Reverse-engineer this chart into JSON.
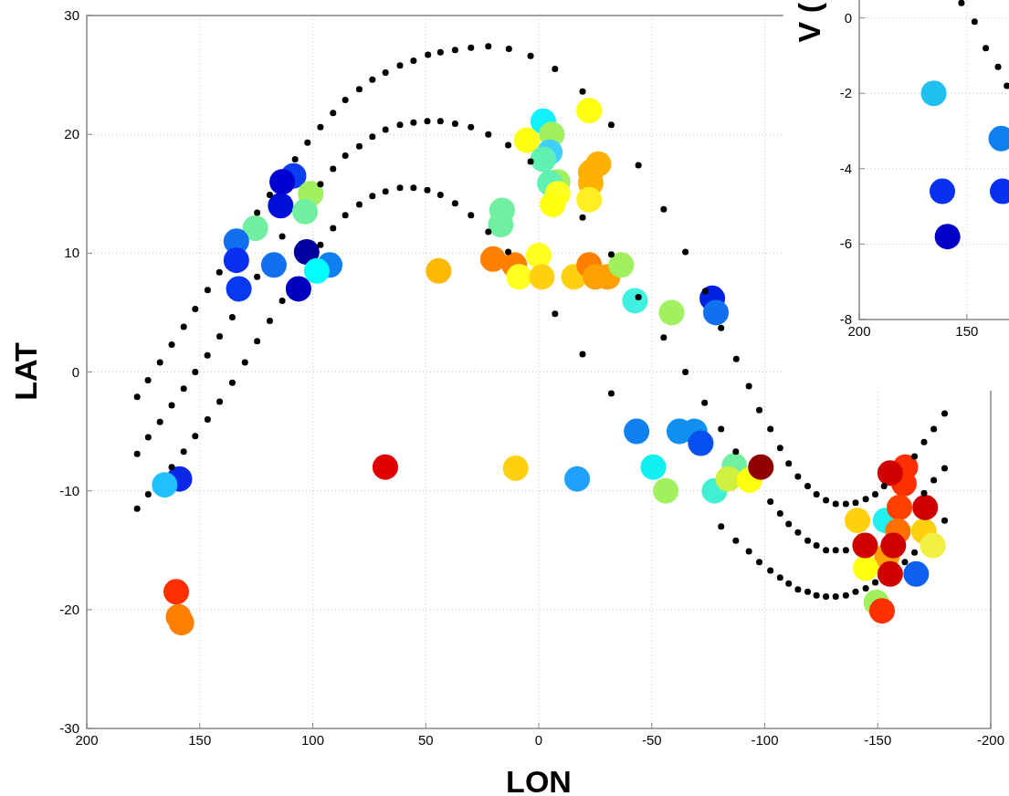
{
  "chart_data": [
    {
      "type": "scatter",
      "xlabel": "LON",
      "ylabel": "LAT",
      "xlim": [
        200,
        -200
      ],
      "ylim": [
        -30,
        30
      ],
      "xticks": [
        200,
        150,
        100,
        50,
        0,
        -50,
        -100,
        -150,
        -200
      ],
      "yticks": [
        -30,
        -20,
        -10,
        0,
        10,
        20,
        30
      ],
      "grid": true,
      "marker": "circle",
      "series": [
        {
          "x": [
            108.5,
            113.5,
            100.9,
            114.2,
            103.4,
            125.4,
            133.8,
            133.8,
            117.2,
            102.7,
            92.5,
            98.2,
            132.7,
            106.3,
            44.3,
            -22.3,
            -2,
            -5.8,
            5.3,
            -4.9,
            -2,
            -26.4,
            -23,
            -23,
            -8.4,
            -4.9,
            -8.4,
            -22.3,
            -6.2,
            16.2,
            16.8,
            20.2,
            10.8,
            0,
            8.7,
            -1.4,
            -15.6,
            -22.3,
            -25.1,
            -30.5,
            -36.5,
            -42.6,
            -58.8,
            -76.8,
            -78.4,
            159,
            165.5,
            67.9,
            160.4,
            159.4,
            158.1,
            10.2,
            -17,
            -43.3,
            -62.2,
            -69,
            -71.7,
            -50.7,
            -56.2,
            -77.8,
            -86.6,
            -83.9,
            -93.3,
            -98.3,
            -154.1,
            -153.5,
            -149.4,
            -141,
            -170.4,
            -174.4,
            -144.7,
            -167,
            -162.2,
            -161.6,
            -159.6,
            -158.9,
            -155.5,
            -171,
            -144.4,
            -156.9,
            -155.5,
            -151.9
          ],
          "values": [
            16.5,
            16,
            15,
            14,
            13.5,
            12.1,
            11,
            9.4,
            9,
            10.1,
            9,
            8.5,
            7,
            7,
            8.5,
            22,
            21.1,
            20,
            19.5,
            18.5,
            17.9,
            17.5,
            16.8,
            15.9,
            16,
            15.9,
            15,
            14.5,
            14.1,
            13.6,
            12.4,
            9.5,
            9,
            9.8,
            8,
            8,
            8,
            9,
            8,
            8,
            9,
            6,
            5,
            6.2,
            5,
            -9,
            -9.5,
            -8,
            -18.5,
            -20.6,
            -21.1,
            -8.1,
            -9,
            -5,
            -5,
            -5,
            -6,
            -8,
            -10,
            -10,
            -7.9,
            -9,
            -9.1,
            -8,
            -15.5,
            -12.5,
            -19.4,
            -12.5,
            -13.4,
            -14.6,
            -16.5,
            -17,
            -8,
            -9.4,
            -11.4,
            -13.4,
            -8.5,
            -11.4,
            -14.6,
            -14.6,
            -17,
            -20.1
          ],
          "colors": [
            "#0a3cf0",
            "#0000d0",
            "#a0f060",
            "#0010d8",
            "#70f0a0",
            "#70f0a0",
            "#1070f0",
            "#0830f0",
            "#1070f0",
            "#0000a0",
            "#1080f0",
            "#00ffff",
            "#0838f0",
            "#0000c0",
            "#ffb800",
            "#ffff10",
            "#10f0ff",
            "#a0f060",
            "#ffff10",
            "#40d0ff",
            "#60f0b0",
            "#ffb000",
            "#ffb000",
            "#ffb000",
            "#a0f060",
            "#60f0b0",
            "#ffff20",
            "#ffee20",
            "#ffff10",
            "#70f0a0",
            "#70f0a0",
            "#ff8000",
            "#ff8000",
            "#ffff20",
            "#ffff20",
            "#ffd010",
            "#ffd010",
            "#ff8000",
            "#ffa000",
            "#ffa000",
            "#a0f060",
            "#40f0e0",
            "#a0f060",
            "#0020e0",
            "#1070f0",
            "#0a28e8",
            "#20c0ff",
            "#e00000",
            "#ff3000",
            "#ff8000",
            "#ff8000",
            "#ffd010",
            "#20a0ff",
            "#1080f0",
            "#1090f0",
            "#1090f0",
            "#0850f0",
            "#10f0f0",
            "#a0f060",
            "#40f0d0",
            "#70f0a0",
            "#d0f040",
            "#ffff10",
            "#900000",
            "#ffa000",
            "#20f0f0",
            "#a0f060",
            "#ffd010",
            "#ffd010",
            "#f0f040",
            "#ffff10",
            "#1060f0",
            "#ff3000",
            "#ff3000",
            "#ff4000",
            "#ff7000",
            "#d00000",
            "#d00000",
            "#d00000",
            "#d00000",
            "#d00000",
            "#ff3000"
          ]
        },
        {
          "color": "#000000",
          "x": [
            177.7,
            172.9,
            167.6,
            162.4,
            157.1,
            152.0,
            146.5,
            141.3,
            124.6,
            119.0,
            107.8,
            102.3,
            96.6,
            91.0,
            85.6,
            79.4,
            73.6,
            67.8,
            61.4,
            55.4,
            49.0,
            43.5,
            37.0,
            30.0,
            22.3,
            13.2,
            3.6,
            -7.2,
            -19.4,
            -32.1,
            -44.1,
            -55.3,
            -64.9,
            -73.7,
            -80.7,
            -87.4,
            -93.0,
            -97.6,
            -102.5,
            -106.8,
            -110.6,
            -114.7,
            -119.0,
            -122.9,
            -127.1,
            -131.4,
            -135.9,
            -140.2,
            -144.7,
            -148.9,
            -152.8,
            -166.3,
            -170.5,
            -174.8,
            -179.6
          ],
          "values": [
            -2.1,
            -0.7,
            0.8,
            2.3,
            3.8,
            5.3,
            6.9,
            8.4,
            13.4,
            14.9,
            17.9,
            19.3,
            20.6,
            21.8,
            22.9,
            23.8,
            24.6,
            25.2,
            25.8,
            26.2,
            26.7,
            26.9,
            27.1,
            27.3,
            27.4,
            27.2,
            26.6,
            25.5,
            23.6,
            20.8,
            17.4,
            13.7,
            10.1,
            6.8,
            3.7,
            1.1,
            -1.2,
            -3.2,
            -4.8,
            -6.4,
            -7.7,
            -8.8,
            -9.6,
            -10.3,
            -10.8,
            -11.1,
            -11.1,
            -11.0,
            -10.7,
            -10.3,
            -9.6,
            -7.1,
            -5.9,
            -4.8,
            -3.5
          ]
        },
        {
          "color": "#000000",
          "x": [
            177.7,
            172.8,
            167.6,
            162.4,
            157.1,
            152.0,
            146.6,
            141.2,
            135.6,
            124.6,
            113.5,
            96.6,
            91.0,
            85.6,
            79.4,
            73.6,
            67.8,
            61.4,
            55.4,
            49.3,
            43.5,
            37.0,
            30.0,
            22.3,
            13.5,
            3.6,
            -19.4,
            -32.1,
            -44.1,
            -55.3,
            -64.9,
            -73.4,
            -80.7,
            -87.2,
            -102.5,
            -106.8,
            -110.6,
            -114.7,
            -119.0,
            -122.9,
            -127.1,
            -131.4,
            -135.9,
            -170.5,
            -174.8,
            -179.6
          ],
          "values": [
            -6.9,
            -5.5,
            -4.2,
            -2.8,
            -1.4,
            0,
            1.4,
            3.0,
            4.6,
            8.0,
            11.4,
            15.8,
            17.1,
            18.2,
            19.0,
            19.8,
            20.4,
            20.8,
            21.0,
            21.1,
            21.1,
            20.9,
            20.6,
            20.0,
            19.1,
            17.7,
            13.0,
            9.9,
            6.3,
            2.9,
            0,
            -2.6,
            -4.8,
            -6.7,
            -10.9,
            -11.9,
            -12.8,
            -13.5,
            -14.2,
            -14.6,
            -15.0,
            -15.0,
            -15.0,
            -10.2,
            -9.1,
            -8.1
          ]
        },
        {
          "color": "#000000",
          "x": [
            177.7,
            172.8,
            162.4,
            157.1,
            152.0,
            146.5,
            141.2,
            135.6,
            130.0,
            124.6,
            119.0,
            113.5,
            96.6,
            91.0,
            85.6,
            79.4,
            73.6,
            67.8,
            61.4,
            55.4,
            49.3,
            43.5,
            37.0,
            30.0,
            22.3,
            13.5,
            -7.2,
            -19.4,
            -32.1,
            -80.7,
            -87.2,
            -93.0,
            -97.6,
            -102.5,
            -106.8,
            -110.6,
            -114.7,
            -119.0,
            -122.9,
            -127.1,
            -131.4,
            -135.9,
            -140.2,
            -144.7,
            -148.9,
            -162.0,
            -166.3,
            -179.6
          ],
          "values": [
            -11.5,
            -10.3,
            -8.0,
            -6.7,
            -5.4,
            -4.0,
            -2.5,
            -0.9,
            0.8,
            2.6,
            4.3,
            6.0,
            10.7,
            12.1,
            13.2,
            14.1,
            14.8,
            15.2,
            15.5,
            15.5,
            15.3,
            14.9,
            14.2,
            13.2,
            11.8,
            10.1,
            4.9,
            1.5,
            -1.8,
            -13.0,
            -14.2,
            -15.1,
            -16.0,
            -16.7,
            -17.3,
            -17.8,
            -18.3,
            -18.5,
            -18.8,
            -18.9,
            -18.9,
            -18.8,
            -18.5,
            -18.2,
            -17.7,
            -16.0,
            -15.2,
            -12.5
          ]
        }
      ]
    },
    {
      "type": "scatter",
      "ylabel": "V (",
      "xlim": [
        200,
        130
      ],
      "ylim": [
        -8,
        0.5
      ],
      "xticks": [
        200,
        150
      ],
      "yticks": [
        -8,
        -6,
        -4,
        -2,
        0
      ],
      "grid": true,
      "marker": "circle",
      "series": [
        {
          "x": [
            165.4,
            134.0,
            161.4,
            133.4,
            159.0
          ],
          "values": [
            -2.0,
            -3.2,
            -4.6,
            -4.6,
            -5.8
          ],
          "colors": [
            "#20c0f0",
            "#1080f0",
            "#0830f0",
            "#0830f0",
            "#0000c8"
          ]
        },
        {
          "color": "#000000",
          "x": [
            152.5,
            146.4,
            141.2,
            135.5,
            131.4
          ],
          "values": [
            0.4,
            -0.1,
            -0.8,
            -1.3,
            -1.8
          ]
        }
      ]
    }
  ]
}
